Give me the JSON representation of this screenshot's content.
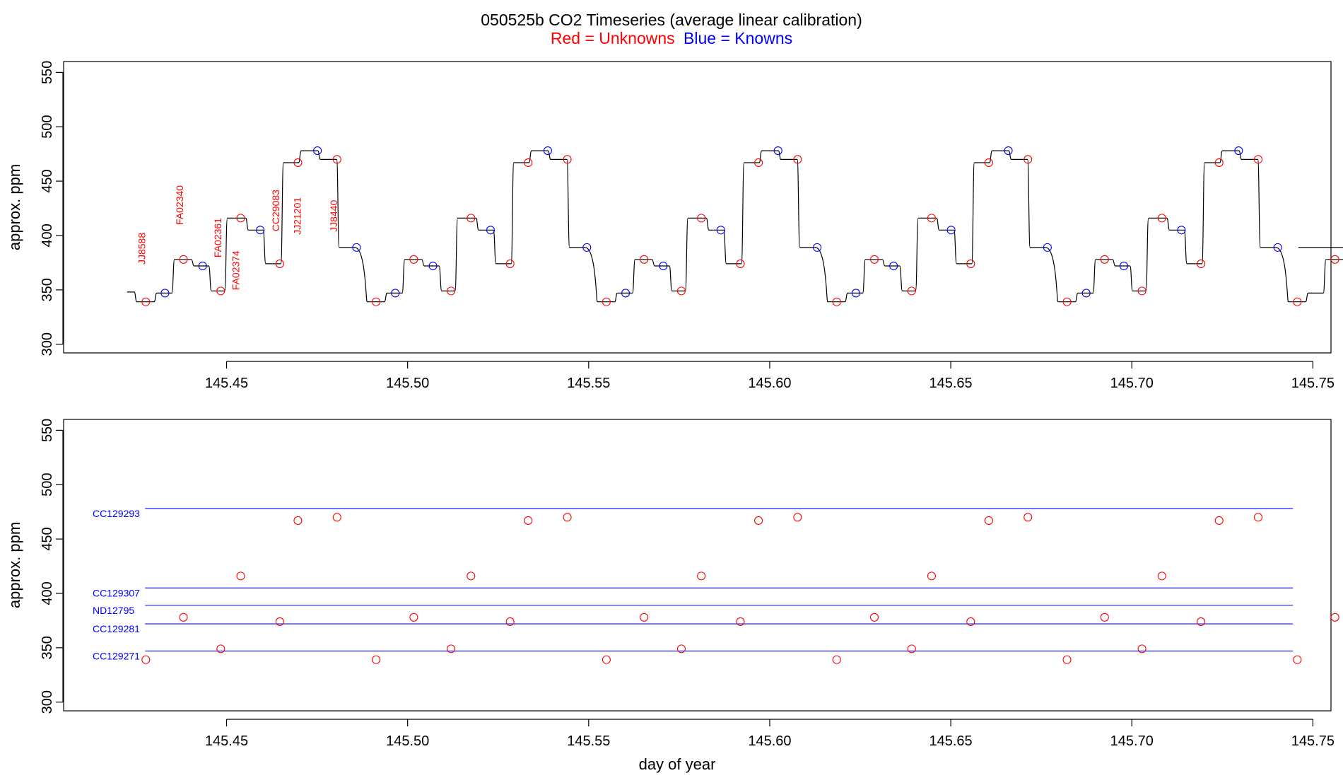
{
  "title": "050525b   CO2 Timeseries (average linear calibration)",
  "subtitle_red": "Red = Unknowns",
  "subtitle_blue": "Blue = Knowns",
  "colors": {
    "unknown": "#ff0000",
    "known": "#0000ff",
    "line": "#000000"
  },
  "chart_data": [
    {
      "type": "line",
      "name": "timeseries",
      "ylabel": "approx. ppm",
      "xlabel": "",
      "xlim": [
        145.405,
        145.755
      ],
      "ylim": [
        292,
        560
      ],
      "xticks": [
        "145.45",
        "145.50",
        "145.55",
        "145.60",
        "145.65",
        "145.70",
        "145.75"
      ],
      "xtick_values": [
        145.45,
        145.5,
        145.55,
        145.6,
        145.65,
        145.7,
        145.75
      ],
      "yticks": [
        "300",
        "350",
        "400",
        "450",
        "500",
        "550"
      ],
      "ytick_values": [
        300,
        350,
        400,
        450,
        500,
        550
      ],
      "line": {
        "start": [
          145.4225,
          348
        ],
        "end_x": 145.746,
        "pattern": [
          {
            "w": 0.0055,
            "v": 339
          },
          {
            "w": 0.0049,
            "v": 347
          },
          {
            "w": 0.0054,
            "v": 378
          },
          {
            "w": 0.0048,
            "v": 372
          },
          {
            "w": 0.0044,
            "v": 349
          },
          {
            "w": 0.0058,
            "v": 416
          },
          {
            "w": 0.0048,
            "v": 405
          },
          {
            "w": 0.0049,
            "v": 374
          },
          {
            "w": 0.0049,
            "v": 467
          },
          {
            "w": 0.0053,
            "v": 478
          },
          {
            "w": 0.0052,
            "v": 470
          },
          {
            "w": 0.005,
            "v": 389
          }
        ],
        "cycle_start": 145.4245,
        "cycle_period": 0.0636,
        "cycles": 6
      },
      "markers_unknown_offsets": [
        {
          "dx": 0.0032,
          "v": 339
        },
        {
          "dx": 0.0136,
          "v": 378
        },
        {
          "dx": 0.0239,
          "v": 349
        },
        {
          "dx": 0.0294,
          "v": 416
        },
        {
          "dx": 0.0402,
          "v": 374
        },
        {
          "dx": 0.0452,
          "v": 467
        },
        {
          "dx": 0.056,
          "v": 470
        }
      ],
      "markers_known_offsets": [
        {
          "dx": 0.0085,
          "v": 347
        },
        {
          "dx": 0.0189,
          "v": 372
        },
        {
          "dx": 0.0348,
          "v": 405
        },
        {
          "dx": 0.0506,
          "v": 478
        },
        {
          "dx": 0.0614,
          "v": 389
        }
      ],
      "annotations": [
        {
          "label": "JJ8588",
          "x": 145.4275,
          "y": 388
        },
        {
          "label": "FA02340",
          "x": 145.438,
          "y": 428
        },
        {
          "label": "FA02361",
          "x": 145.4485,
          "y": 398
        },
        {
          "label": "FA02374",
          "x": 145.4535,
          "y": 368
        },
        {
          "label": "CC29083",
          "x": 145.4645,
          "y": 423
        },
        {
          "label": "JJ21201",
          "x": 145.4705,
          "y": 418
        },
        {
          "label": "JJ8440",
          "x": 145.4805,
          "y": 418
        }
      ]
    },
    {
      "type": "scatter",
      "name": "calibration",
      "ylabel": "approx. ppm",
      "xlabel": "day of year",
      "xlim": [
        145.405,
        145.755
      ],
      "ylim": [
        292,
        560
      ],
      "xticks": [
        "145.45",
        "145.50",
        "145.55",
        "145.60",
        "145.65",
        "145.70",
        "145.75"
      ],
      "xtick_values": [
        145.45,
        145.5,
        145.55,
        145.6,
        145.65,
        145.7,
        145.75
      ],
      "yticks": [
        "300",
        "350",
        "400",
        "450",
        "500",
        "550"
      ],
      "ytick_values": [
        300,
        350,
        400,
        450,
        500,
        550
      ],
      "standards": [
        {
          "label": "CC129293",
          "value": 478,
          "x_range": [
            145.4275,
            145.7445
          ]
        },
        {
          "label": "CC129307",
          "value": 405,
          "x_range": [
            145.4275,
            145.7445
          ]
        },
        {
          "label": "ND12795",
          "value": 389,
          "x_range": [
            145.4275,
            145.7445
          ]
        },
        {
          "label": "CC129281",
          "value": 372,
          "x_range": [
            145.4275,
            145.7445
          ]
        },
        {
          "label": "CC129271",
          "value": 347,
          "x_range": [
            145.4275,
            145.7445
          ]
        }
      ]
    }
  ]
}
